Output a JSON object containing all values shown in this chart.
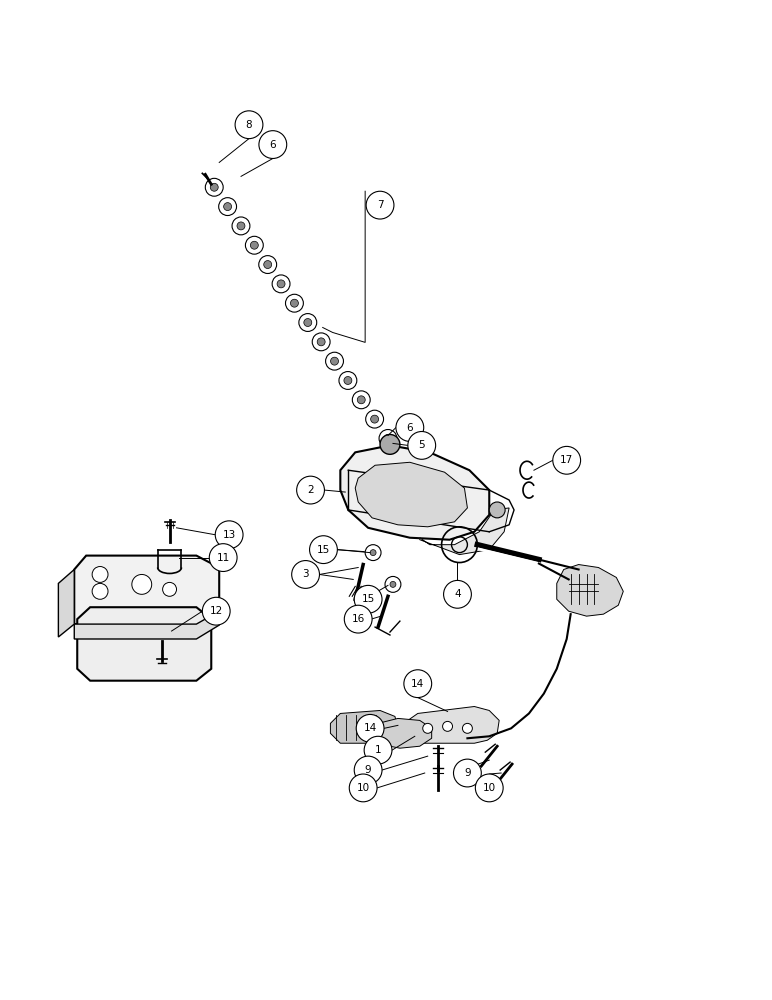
{
  "bg_color": "#ffffff",
  "line_color": "#000000",
  "fig_width": 7.72,
  "fig_height": 10.0,
  "dpi": 100
}
